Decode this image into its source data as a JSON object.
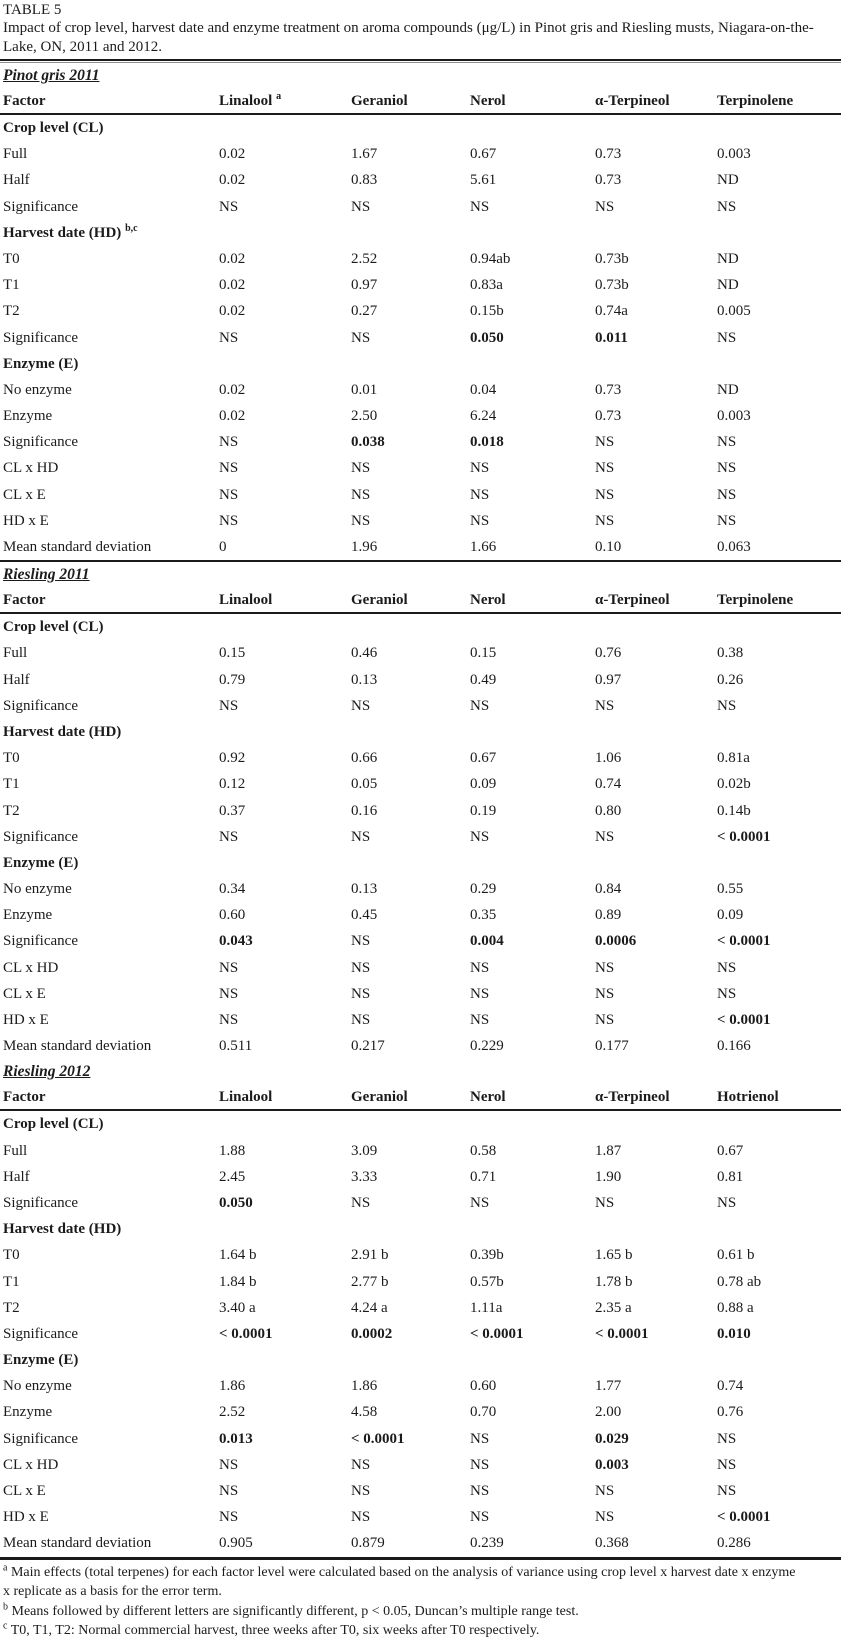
{
  "table_label": "TABLE 5",
  "caption": "Impact of crop level, harvest date and enzyme treatment on aroma compounds (μg/L) in Pinot gris and Riesling musts, Niagara-on-the-Lake, ON, 2011 and 2012.",
  "colors": {
    "text": "#1b1b1b",
    "rule": "#1b1b1b",
    "background": "#ffffff"
  },
  "sections": [
    {
      "label": "Pinot gris 2011",
      "rule_above": false,
      "columns": [
        "Factor",
        {
          "t": "Linalool",
          "sup": "a"
        },
        "Geraniol",
        "Nerol",
        "α-Terpineol",
        "Terpinolene"
      ],
      "rows": [
        {
          "type": "sub",
          "label": "Crop level (CL)"
        },
        {
          "label": "Full",
          "values": [
            "0.02",
            "1.67",
            "0.67",
            "0.73",
            "0.003"
          ]
        },
        {
          "label": "Half",
          "values": [
            "0.02",
            "0.83",
            "5.61",
            "0.73",
            "ND"
          ]
        },
        {
          "label": "Significance",
          "values": [
            "NS",
            "NS",
            "NS",
            "NS",
            "NS"
          ]
        },
        {
          "type": "sub",
          "label": "Harvest date (HD)",
          "sup": "b,c"
        },
        {
          "label": "T0",
          "values": [
            "0.02",
            "2.52",
            "0.94ab",
            "0.73b",
            "ND"
          ]
        },
        {
          "label": "T1",
          "values": [
            "0.02",
            "0.97",
            "0.83a",
            "0.73b",
            "ND"
          ]
        },
        {
          "label": "T2",
          "values": [
            "0.02",
            "0.27",
            "0.15b",
            "0.74a",
            "0.005"
          ]
        },
        {
          "label": "Significance",
          "values": [
            "NS",
            "NS",
            {
              "t": "0.050",
              "b": true
            },
            {
              "t": "0.011",
              "b": true
            },
            "NS"
          ]
        },
        {
          "type": "sub",
          "label": "Enzyme (E)"
        },
        {
          "label": "No enzyme",
          "values": [
            "0.02",
            "0.01",
            "0.04",
            "0.73",
            "ND"
          ]
        },
        {
          "label": "Enzyme",
          "values": [
            "0.02",
            "2.50",
            "6.24",
            "0.73",
            "0.003"
          ]
        },
        {
          "label": "Significance",
          "values": [
            "NS",
            {
              "t": "0.038",
              "b": true
            },
            {
              "t": "0.018",
              "b": true
            },
            "NS",
            "NS"
          ]
        },
        {
          "label": "CL x HD",
          "values": [
            "NS",
            "NS",
            "NS",
            "NS",
            "NS"
          ]
        },
        {
          "label": "CL x E",
          "values": [
            "NS",
            "NS",
            "NS",
            "NS",
            "NS"
          ]
        },
        {
          "label": "HD x E",
          "values": [
            "NS",
            "NS",
            "NS",
            "NS",
            "NS"
          ]
        },
        {
          "label": "Mean standard deviation",
          "values": [
            "0",
            "1.96",
            "1.66",
            "0.10",
            "0.063"
          ]
        }
      ]
    },
    {
      "label": "Riesling 2011",
      "rule_above": true,
      "columns": [
        "Factor",
        "Linalool",
        "Geraniol",
        "Nerol",
        "α-Terpineol",
        "Terpinolene"
      ],
      "rows": [
        {
          "type": "sub",
          "label": "Crop level (CL)"
        },
        {
          "label": "Full",
          "values": [
            "0.15",
            "0.46",
            "0.15",
            "0.76",
            "0.38"
          ]
        },
        {
          "label": "Half",
          "values": [
            "0.79",
            "0.13",
            "0.49",
            "0.97",
            "0.26"
          ]
        },
        {
          "label": "Significance",
          "values": [
            "NS",
            "NS",
            "NS",
            "NS",
            "NS"
          ]
        },
        {
          "type": "sub",
          "label": "Harvest date (HD)"
        },
        {
          "label": "T0",
          "values": [
            "0.92",
            "0.66",
            "0.67",
            "1.06",
            "0.81a"
          ]
        },
        {
          "label": "T1",
          "values": [
            "0.12",
            "0.05",
            "0.09",
            "0.74",
            "0.02b"
          ]
        },
        {
          "label": "T2",
          "values": [
            "0.37",
            "0.16",
            "0.19",
            "0.80",
            "0.14b"
          ]
        },
        {
          "label": "Significance",
          "values": [
            "NS",
            "NS",
            "NS",
            "NS",
            {
              "t": "< 0.0001",
              "b": true
            }
          ]
        },
        {
          "type": "sub",
          "label": "Enzyme (E)"
        },
        {
          "label": "No enzyme",
          "values": [
            "0.34",
            "0.13",
            "0.29",
            "0.84",
            "0.55"
          ]
        },
        {
          "label": "Enzyme",
          "values": [
            "0.60",
            "0.45",
            "0.35",
            "0.89",
            "0.09"
          ]
        },
        {
          "label": "Significance",
          "values": [
            {
              "t": "0.043",
              "b": true
            },
            "NS",
            {
              "t": "0.004",
              "b": true
            },
            {
              "t": "0.0006",
              "b": true
            },
            {
              "t": "< 0.0001",
              "b": true
            }
          ]
        },
        {
          "label": "CL x HD",
          "values": [
            "NS",
            "NS",
            "NS",
            "NS",
            "NS"
          ]
        },
        {
          "label": "CL x E",
          "values": [
            "NS",
            "NS",
            "NS",
            "NS",
            "NS"
          ]
        },
        {
          "label": "HD x E",
          "values": [
            "NS",
            "NS",
            "NS",
            "NS",
            {
              "t": "< 0.0001",
              "b": true
            }
          ]
        },
        {
          "label": "Mean standard deviation",
          "values": [
            "0.511",
            "0.217",
            "0.229",
            "0.177",
            "0.166"
          ]
        }
      ]
    },
    {
      "label": "Riesling 2012",
      "rule_above": false,
      "columns": [
        "Factor",
        "Linalool",
        "Geraniol",
        "Nerol",
        "α-Terpineol",
        "Hotrienol"
      ],
      "rows": [
        {
          "type": "sub",
          "label": "Crop level (CL)"
        },
        {
          "label": "Full",
          "values": [
            "1.88",
            "3.09",
            "0.58",
            "1.87",
            "0.67"
          ]
        },
        {
          "label": "Half",
          "values": [
            "2.45",
            "3.33",
            "0.71",
            "1.90",
            "0.81"
          ]
        },
        {
          "label": "Significance",
          "values": [
            {
              "t": "0.050",
              "b": true
            },
            "NS",
            "NS",
            "NS",
            "NS"
          ]
        },
        {
          "type": "sub",
          "label": "Harvest date (HD)"
        },
        {
          "label": "T0",
          "values": [
            "1.64 b",
            "2.91 b",
            "0.39b",
            "1.65 b",
            "0.61 b"
          ]
        },
        {
          "label": "T1",
          "values": [
            "1.84 b",
            "2.77 b",
            "0.57b",
            "1.78 b",
            "0.78 ab"
          ]
        },
        {
          "label": "T2",
          "values": [
            "3.40 a",
            "4.24 a",
            "1.11a",
            "2.35 a",
            "0.88 a"
          ]
        },
        {
          "label": "Significance",
          "values": [
            {
              "t": "< 0.0001",
              "b": true
            },
            {
              "t": "0.0002",
              "b": true
            },
            {
              "t": "< 0.0001",
              "b": true
            },
            {
              "t": "< 0.0001",
              "b": true
            },
            {
              "t": "0.010",
              "b": true
            }
          ]
        },
        {
          "type": "sub",
          "label": "Enzyme (E)"
        },
        {
          "label": "No enzyme",
          "values": [
            "1.86",
            "1.86",
            "0.60",
            "1.77",
            "0.74"
          ]
        },
        {
          "label": "Enzyme",
          "values": [
            "2.52",
            "4.58",
            "0.70",
            "2.00",
            "0.76"
          ]
        },
        {
          "label": "Significance",
          "values": [
            {
              "t": "0.013",
              "b": true
            },
            {
              "t": "< 0.0001",
              "b": true
            },
            "NS",
            {
              "t": "0.029",
              "b": true
            },
            "NS"
          ]
        },
        {
          "label": "CL x HD",
          "values": [
            "NS",
            "NS",
            "NS",
            {
              "t": "0.003",
              "b": true
            },
            "NS"
          ]
        },
        {
          "label": "CL x E",
          "values": [
            "NS",
            "NS",
            "NS",
            "NS",
            "NS"
          ]
        },
        {
          "label": "HD x E",
          "values": [
            "NS",
            "NS",
            "NS",
            "NS",
            {
              "t": "< 0.0001",
              "b": true
            }
          ]
        },
        {
          "label": "Mean standard deviation",
          "values": [
            "0.905",
            "0.879",
            "0.239",
            "0.368",
            "0.286"
          ]
        }
      ]
    }
  ],
  "footnotes": [
    {
      "sup": "a",
      "text": "Main effects (total terpenes) for each factor level were calculated based on the analysis of variance using crop level x harvest date x enzyme",
      "nowrap": true
    },
    {
      "sup": "",
      "text": "x replicate as a basis for the error term."
    },
    {
      "sup": "b",
      "text": "Means followed by different letters are significantly different, p < 0.05, Duncan’s multiple range test."
    },
    {
      "sup": "c",
      "text": "T0, T1, T2: Normal commercial harvest, three weeks after T0, six weeks after T0 respectively."
    }
  ]
}
